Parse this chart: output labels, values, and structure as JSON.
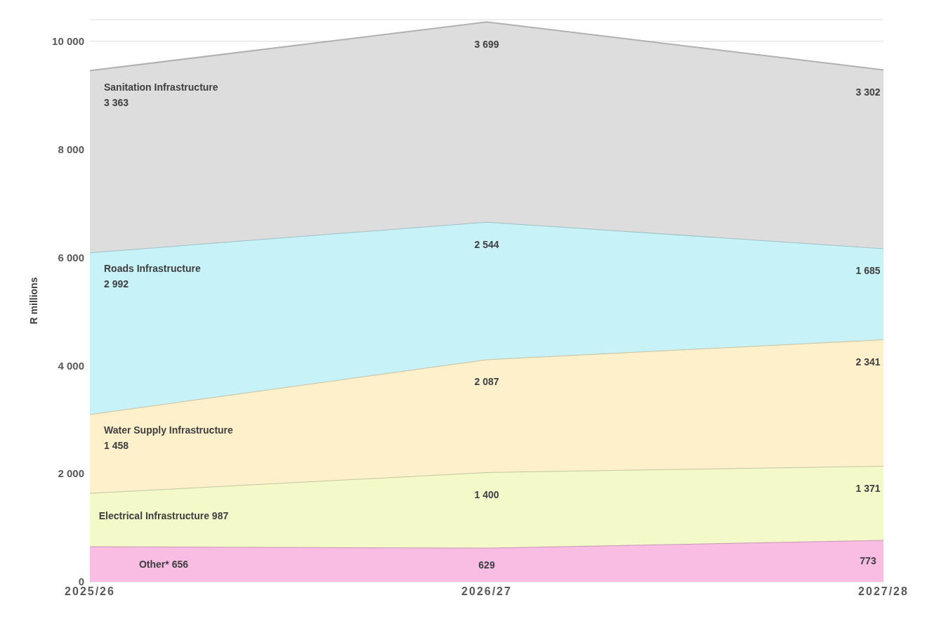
{
  "chart_data": {
    "type": "area",
    "stacked": true,
    "categories": [
      "2025/26",
      "2026/27",
      "2027/28"
    ],
    "ylabel": "R millions",
    "ylim": [
      0,
      10400
    ],
    "yticks": [
      {
        "value": 0,
        "label": "0"
      },
      {
        "value": 2000,
        "label": "2 000"
      },
      {
        "value": 4000,
        "label": "4 000"
      },
      {
        "value": 6000,
        "label": "6 000"
      },
      {
        "value": 8000,
        "label": "8 000"
      },
      {
        "value": 10000,
        "label": "10 000"
      }
    ],
    "grid": "y",
    "legend": false,
    "series": [
      {
        "name": "Other*",
        "color": "#f9bde3",
        "values": [
          656,
          629,
          773
        ],
        "value_labels": [
          "656",
          "629",
          "773"
        ]
      },
      {
        "name": "Electrical Infrastructure",
        "color": "#f3f9c9",
        "values": [
          987,
          1400,
          1371
        ],
        "value_labels": [
          "987",
          "1 400",
          "1 371"
        ]
      },
      {
        "name": "Water Supply Infrastructure",
        "color": "#fdf0ca",
        "values": [
          1458,
          2087,
          2341
        ],
        "value_labels": [
          "1 458",
          "2 087",
          "2 341"
        ]
      },
      {
        "name": "Roads Infrastructure",
        "color": "#c7f2f8",
        "values": [
          2992,
          2544,
          1685
        ],
        "value_labels": [
          "2 992",
          "2 544",
          "1 685"
        ]
      },
      {
        "name": "Sanitation Infrastructure",
        "color": "#dddddd",
        "values": [
          3363,
          3699,
          3302
        ],
        "value_labels": [
          "3 363",
          "3 699",
          "3 302"
        ]
      }
    ]
  }
}
